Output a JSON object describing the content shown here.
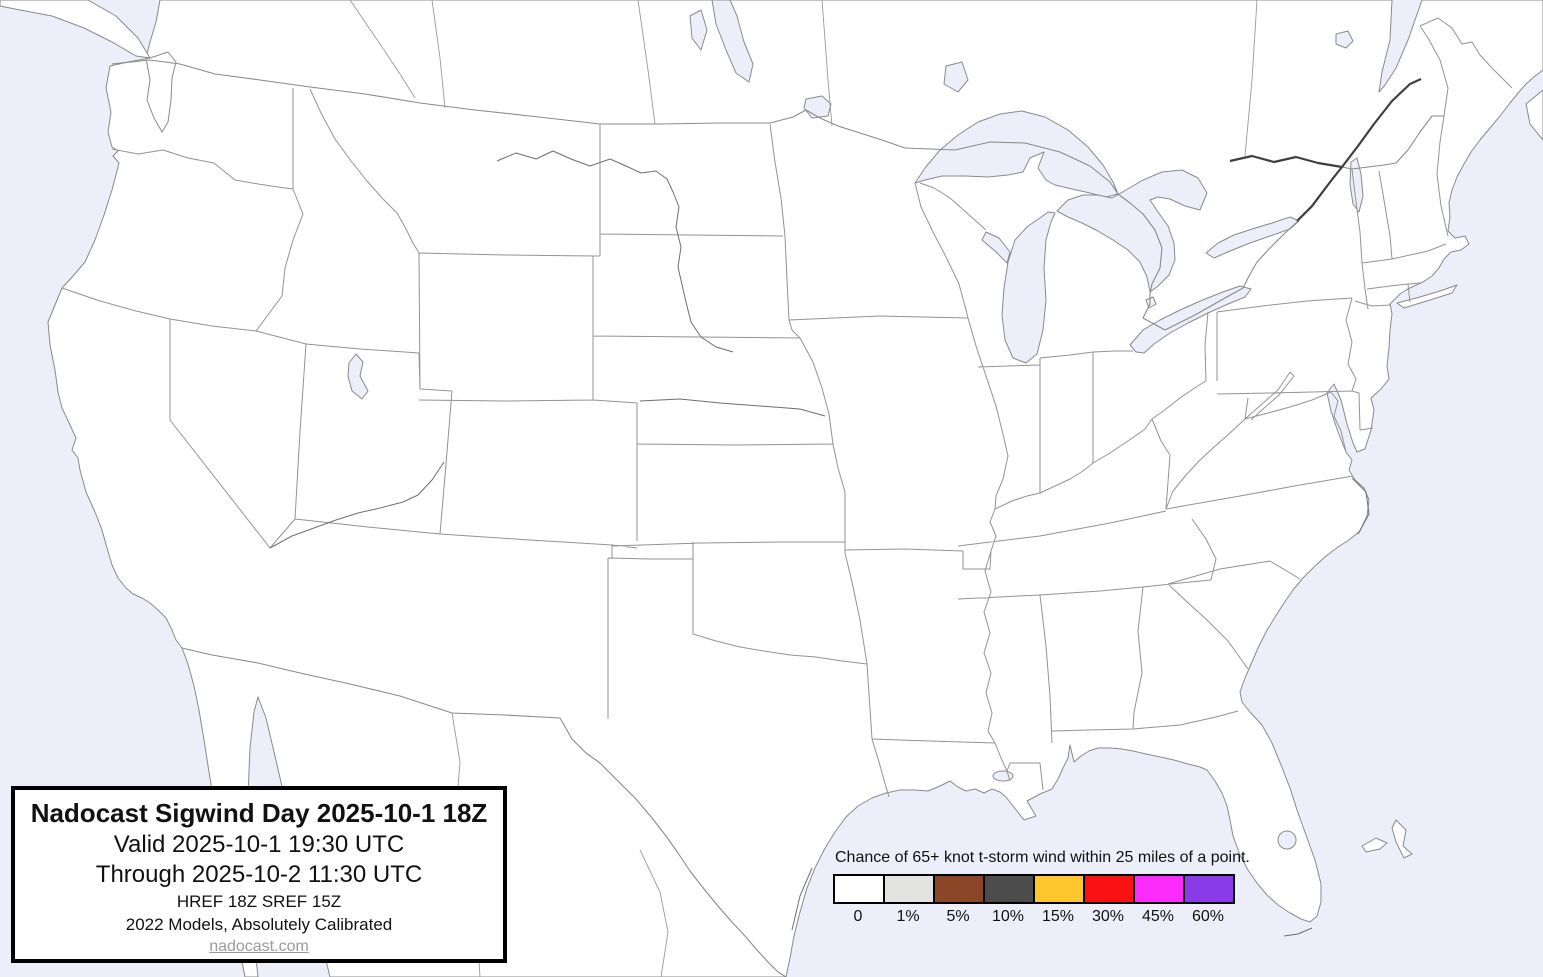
{
  "title_box": {
    "title": "Nadocast Sigwind Day 2025-10-1 18Z",
    "valid_line": "Valid 2025-10-1 19:30 UTC",
    "through_line": "Through 2025-10-2 11:30 UTC",
    "models_line": "HREF 18Z SREF 15Z",
    "calibration_line": "2022 Models, Absolutely Calibrated",
    "website": "nadocast.com"
  },
  "legend": {
    "title": "Chance of 65+ knot t-storm wind within 25 miles of a point.",
    "bins": [
      {
        "label": "0",
        "color": "#ffffff"
      },
      {
        "label": "1%",
        "color": "#e3e3e1"
      },
      {
        "label": "5%",
        "color": "#8b4627"
      },
      {
        "label": "10%",
        "color": "#4c4c4c"
      },
      {
        "label": "15%",
        "color": "#ffc62e"
      },
      {
        "label": "30%",
        "color": "#fa1113"
      },
      {
        "label": "45%",
        "color": "#fb2bfb"
      },
      {
        "label": "60%",
        "color": "#8a3be8"
      }
    ]
  },
  "map": {
    "region": "Continental United States with southern Canada and northern Mexico",
    "water_color": "#eceffa",
    "land_color": "#ffffff",
    "coast_color": "#8a8a8a",
    "state_border_color": "#939393",
    "river_color": "#6f6f6f",
    "dark_river_color": "#3f3f3f",
    "forecast_fill": "none (0 probability everywhere — all land white)"
  }
}
